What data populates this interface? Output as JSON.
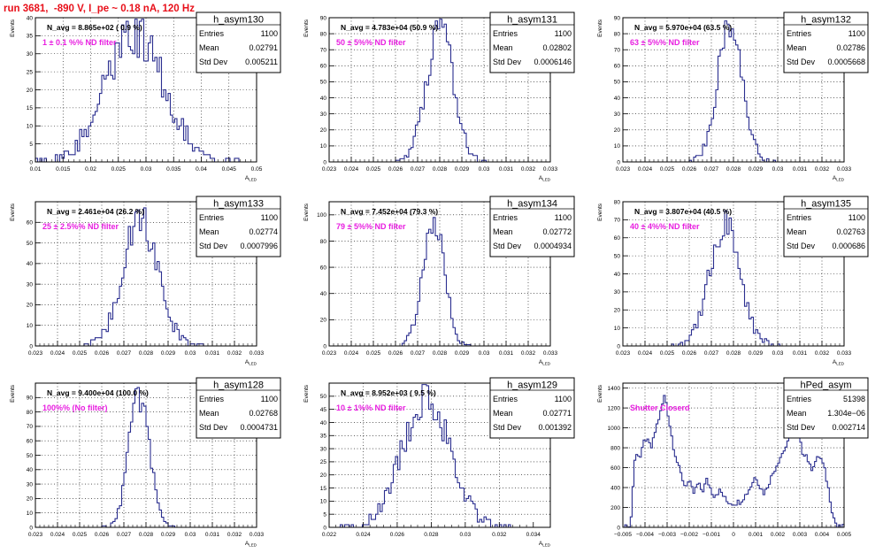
{
  "page_title": "run 3681,  -890 V, I_pe ~ 0.18 nA, 120 Hz",
  "colors": {
    "hist_line": "#2b2f8f",
    "annotation": "#e81ee0",
    "title": "#e8101a",
    "frame": "#000000"
  },
  "stats_labels": {
    "entries": "Entries",
    "mean": "Mean",
    "std": "Std Dev"
  },
  "chart_data": [
    {
      "type": "histogram",
      "name": "h_asym130",
      "navg": "N_avg = 8.865e+02 ( 0.9 %)",
      "note": "1 ± 0.1 %% ND filter",
      "entries": "1100",
      "mean": "0.02791",
      "std": "0.005211",
      "xlabel": "A_LED",
      "ylabel": "Events",
      "xlim": [
        0.01,
        0.05
      ],
      "ylim": [
        0,
        40
      ],
      "xticks": [
        0.01,
        0.015,
        0.02,
        0.025,
        0.03,
        0.035,
        0.04,
        0.045,
        0.05
      ],
      "xticklabels": [
        "0.01",
        "0.015",
        "0.02",
        "0.025",
        "0.03",
        "0.035",
        "0.04",
        "0.045",
        "0.05"
      ],
      "yticks": [
        0,
        5,
        10,
        15,
        20,
        25,
        30,
        35,
        40
      ],
      "gen": {
        "mu": 0.0279,
        "sigma": 0.00521,
        "peak": 36,
        "bins": 100,
        "range": [
          0.01,
          0.05
        ],
        "seed": 130
      }
    },
    {
      "type": "histogram",
      "name": "h_asym131",
      "navg": "N_avg = 4.783e+04 (50.9 %)",
      "note": "50 ± 5%% ND filter",
      "entries": "1100",
      "mean": "0.02802",
      "std": "0.0006146",
      "xlabel": "A_LED",
      "ylabel": "Events",
      "xlim": [
        0.023,
        0.033
      ],
      "ylim": [
        0,
        90
      ],
      "xticks": [
        0.023,
        0.024,
        0.025,
        0.026,
        0.027,
        0.028,
        0.029,
        0.03,
        0.031,
        0.032,
        0.033
      ],
      "xticklabels": [
        "0.023",
        "0.024",
        "0.025",
        "0.026",
        "0.027",
        "0.028",
        "0.029",
        "0.03",
        "0.031",
        "0.032",
        "0.033"
      ],
      "yticks": [
        0,
        10,
        20,
        30,
        40,
        50,
        60,
        70,
        80,
        90
      ],
      "gen": {
        "mu": 0.02802,
        "sigma": 0.000615,
        "peak": 82,
        "bins": 100,
        "range": [
          0.023,
          0.033
        ],
        "seed": 131
      }
    },
    {
      "type": "histogram",
      "name": "h_asym132",
      "navg": "N_avg = 5.970e+04 (63.5 %)",
      "note": "63 ± 5%% ND filter",
      "entries": "1100",
      "mean": "0.02786",
      "std": "0.0005668",
      "xlabel": "A_LED",
      "ylabel": "Events",
      "xlim": [
        0.023,
        0.033
      ],
      "ylim": [
        0,
        90
      ],
      "xticks": [
        0.023,
        0.024,
        0.025,
        0.026,
        0.027,
        0.028,
        0.029,
        0.03,
        0.031,
        0.032,
        0.033
      ],
      "xticklabels": [
        "0.023",
        "0.024",
        "0.025",
        "0.026",
        "0.027",
        "0.028",
        "0.029",
        "0.03",
        "0.031",
        "0.032",
        "0.033"
      ],
      "yticks": [
        0,
        10,
        20,
        30,
        40,
        50,
        60,
        70,
        80,
        90
      ],
      "gen": {
        "mu": 0.02786,
        "sigma": 0.000567,
        "peak": 87,
        "bins": 100,
        "range": [
          0.023,
          0.033
        ],
        "seed": 132
      }
    },
    {
      "type": "histogram",
      "name": "h_asym133",
      "navg": "N_avg = 2.461e+04 (26.2 %)",
      "note": "25 ± 2.5%% ND filter",
      "entries": "1100",
      "mean": "0.02774",
      "std": "0.0007996",
      "xlabel": "A_LED",
      "ylabel": "Events",
      "xlim": [
        0.023,
        0.033
      ],
      "ylim": [
        0,
        70
      ],
      "xticks": [
        0.023,
        0.024,
        0.025,
        0.026,
        0.027,
        0.028,
        0.029,
        0.03,
        0.031,
        0.032,
        0.033
      ],
      "xticklabels": [
        "0.023",
        "0.024",
        "0.025",
        "0.026",
        "0.027",
        "0.028",
        "0.029",
        "0.03",
        "0.031",
        "0.032",
        "0.033"
      ],
      "yticks": [
        0,
        10,
        20,
        30,
        40,
        50,
        60
      ],
      "gen": {
        "mu": 0.02774,
        "sigma": 0.0008,
        "peak": 62,
        "bins": 100,
        "range": [
          0.023,
          0.033
        ],
        "seed": 133
      }
    },
    {
      "type": "histogram",
      "name": "h_asym134",
      "navg": "N_avg = 7.452e+04 (79.3 %)",
      "note": "79 ± 5%% ND filter",
      "entries": "1100",
      "mean": "0.02772",
      "std": "0.0004934",
      "xlabel": "A_LED",
      "ylabel": "Events",
      "xlim": [
        0.023,
        0.033
      ],
      "ylim": [
        0,
        110
      ],
      "xticks": [
        0.023,
        0.024,
        0.025,
        0.026,
        0.027,
        0.028,
        0.029,
        0.03,
        0.031,
        0.032,
        0.033
      ],
      "xticklabels": [
        "0.023",
        "0.024",
        "0.025",
        "0.026",
        "0.027",
        "0.028",
        "0.029",
        "0.03",
        "0.031",
        "0.032",
        "0.033"
      ],
      "yticks": [
        0,
        20,
        40,
        60,
        80,
        100
      ],
      "gen": {
        "mu": 0.02772,
        "sigma": 0.000493,
        "peak": 96,
        "bins": 100,
        "range": [
          0.023,
          0.033
        ],
        "seed": 134
      }
    },
    {
      "type": "histogram",
      "name": "h_asym135",
      "navg": "N_avg = 3.807e+04 (40.5 %)",
      "note": "40 ± 4%% ND filter",
      "entries": "1100",
      "mean": "0.02763",
      "std": "0.000686",
      "xlabel": "A_LED",
      "ylabel": "Events",
      "xlim": [
        0.023,
        0.033
      ],
      "ylim": [
        0,
        80
      ],
      "xticks": [
        0.023,
        0.024,
        0.025,
        0.026,
        0.027,
        0.028,
        0.029,
        0.03,
        0.031,
        0.032,
        0.033
      ],
      "xticklabels": [
        "0.023",
        "0.024",
        "0.025",
        "0.026",
        "0.027",
        "0.028",
        "0.029",
        "0.03",
        "0.031",
        "0.032",
        "0.033"
      ],
      "yticks": [
        0,
        10,
        20,
        30,
        40,
        50,
        60,
        70,
        80
      ],
      "gen": {
        "mu": 0.02763,
        "sigma": 0.000686,
        "peak": 68,
        "bins": 100,
        "range": [
          0.023,
          0.033
        ],
        "seed": 135
      }
    },
    {
      "type": "histogram",
      "name": "h_asym128",
      "navg": "N_avg = 9.400e+04 (100.0 %)",
      "note": "100%% (No filter)",
      "entries": "1100",
      "mean": "0.02768",
      "std": "0.0004731",
      "xlabel": "A_LED",
      "ylabel": "Events",
      "xlim": [
        0.023,
        0.033
      ],
      "ylim": [
        0,
        100
      ],
      "xticks": [
        0.023,
        0.024,
        0.025,
        0.026,
        0.027,
        0.028,
        0.029,
        0.03,
        0.031,
        0.032,
        0.033
      ],
      "xticklabels": [
        "0.023",
        "0.024",
        "0.025",
        "0.026",
        "0.027",
        "0.028",
        "0.029",
        "0.03",
        "0.031",
        "0.032",
        "0.033"
      ],
      "yticks": [
        0,
        10,
        20,
        30,
        40,
        50,
        60,
        70,
        80,
        90
      ],
      "gen": {
        "mu": 0.02768,
        "sigma": 0.000473,
        "peak": 90,
        "bins": 100,
        "range": [
          0.023,
          0.033
        ],
        "seed": 128
      }
    },
    {
      "type": "histogram",
      "name": "h_asym129",
      "navg": "N_avg = 8.952e+03 ( 9.5 %)",
      "note": "10 ± 1%% ND filter",
      "entries": "1100",
      "mean": "0.02771",
      "std": "0.001392",
      "xlabel": "A_LED",
      "ylabel": "Events",
      "xlim": [
        0.022,
        0.035
      ],
      "ylim": [
        0,
        55
      ],
      "xticks": [
        0.022,
        0.024,
        0.026,
        0.028,
        0.03,
        0.032,
        0.034
      ],
      "xticklabels": [
        "0.022",
        "0.024",
        "0.026",
        "0.028",
        "0.03",
        "0.032",
        "0.034"
      ],
      "yticks": [
        0,
        5,
        10,
        15,
        20,
        25,
        30,
        35,
        40,
        45,
        50
      ],
      "gen": {
        "mu": 0.02771,
        "sigma": 0.00139,
        "peak": 50,
        "bins": 100,
        "range": [
          0.022,
          0.035
        ],
        "seed": 129
      }
    },
    {
      "type": "histogram",
      "name": "hPed_asym",
      "navg": "",
      "note": "Shutter Closerd",
      "entries": "51398",
      "mean": "1.304e−06",
      "std": "0.002714",
      "xlabel": "",
      "ylabel": "Events",
      "xlim": [
        -0.005,
        0.005
      ],
      "ylim": [
        0,
        1450
      ],
      "xticks": [
        -0.005,
        -0.004,
        -0.003,
        -0.002,
        -0.001,
        0,
        0.001,
        0.002,
        0.003,
        0.004,
        0.005
      ],
      "xticklabels": [
        "−0.005",
        "−0.004",
        "−0.003",
        "−0.002",
        "−0.001",
        "0",
        "0.001",
        "0.002",
        "0.003",
        "0.004",
        "0.005"
      ],
      "yticks": [
        0,
        200,
        400,
        600,
        800,
        1000,
        1200,
        1400
      ],
      "ped_points": [
        [
          -0.005,
          0
        ],
        [
          -0.0047,
          0
        ],
        [
          -0.0046,
          150
        ],
        [
          -0.0045,
          600
        ],
        [
          -0.0044,
          760
        ],
        [
          -0.0042,
          700
        ],
        [
          -0.004,
          900
        ],
        [
          -0.0037,
          800
        ],
        [
          -0.0035,
          1000
        ],
        [
          -0.0033,
          1150
        ],
        [
          -0.0031,
          1340
        ],
        [
          -0.0029,
          1060
        ],
        [
          -0.0027,
          800
        ],
        [
          -0.0025,
          620
        ],
        [
          -0.0022,
          420
        ],
        [
          -0.002,
          460
        ],
        [
          -0.0018,
          340
        ],
        [
          -0.0016,
          440
        ],
        [
          -0.0014,
          360
        ],
        [
          -0.0012,
          480
        ],
        [
          -0.0009,
          320
        ],
        [
          -0.0006,
          370
        ],
        [
          -0.0003,
          260
        ],
        [
          0.0,
          240
        ],
        [
          0.0003,
          260
        ],
        [
          0.0006,
          340
        ],
        [
          0.0008,
          420
        ],
        [
          0.001,
          520
        ],
        [
          0.0012,
          410
        ],
        [
          0.0014,
          340
        ],
        [
          0.0017,
          500
        ],
        [
          0.0019,
          600
        ],
        [
          0.0021,
          700
        ],
        [
          0.0023,
          780
        ],
        [
          0.0025,
          860
        ],
        [
          0.0027,
          1060
        ],
        [
          0.0029,
          1000
        ],
        [
          0.0031,
          760
        ],
        [
          0.0033,
          730
        ],
        [
          0.0035,
          580
        ],
        [
          0.0037,
          660
        ],
        [
          0.0039,
          720
        ],
        [
          0.0041,
          600
        ],
        [
          0.0043,
          380
        ],
        [
          0.0045,
          120
        ],
        [
          0.0047,
          0
        ],
        [
          0.005,
          0
        ]
      ]
    }
  ]
}
